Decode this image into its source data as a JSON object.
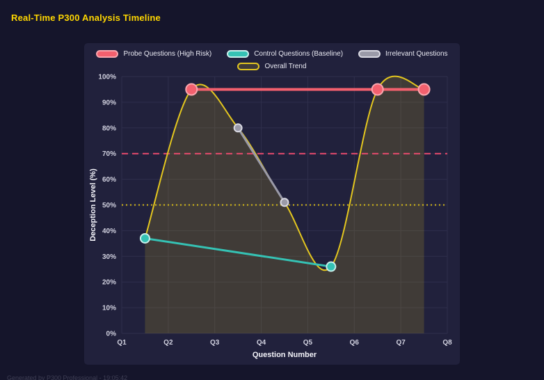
{
  "header": {
    "title": "Real-Time P300 Analysis Timeline",
    "title_color": "#ffd700"
  },
  "footer": {
    "note": "Generated by P300 Professional - 19:05:42"
  },
  "chart_data": {
    "type": "line",
    "title": "Real-Time P300 Analysis Timeline",
    "xlabel": "Question Number",
    "ylabel": "Deception Level (%)",
    "x_ticks": [
      "Q1",
      "Q2",
      "Q3",
      "Q4",
      "Q5",
      "Q6",
      "Q7",
      "Q8"
    ],
    "x_range": [
      1,
      8
    ],
    "ylim": [
      0,
      100
    ],
    "y_tick_step": 10,
    "y_tick_suffix": "%",
    "grid": true,
    "grid_color": "#2f2f4c",
    "tick_color": "#d2d2e0",
    "axis_label_color": "#f3f3f9",
    "legend_position": "top",
    "legend_rows": [
      [
        "probe",
        "control",
        "irrelevant"
      ],
      [
        "trend"
      ]
    ],
    "series": [
      {
        "key": "probe",
        "name": "Probe Questions (High Risk)",
        "color": "#f3606e",
        "border": "#f9a6ae",
        "x": [
          2.5,
          6.5,
          7.5
        ],
        "values": [
          95,
          95,
          95
        ],
        "line_width": 4,
        "point_radius": 8
      },
      {
        "key": "control",
        "name": "Control Questions (Baseline)",
        "color": "#35c2b4",
        "border": "#c9f0ec",
        "x": [
          1.5,
          5.5
        ],
        "values": [
          37,
          26
        ],
        "line_width": 3,
        "point_radius": 6.5
      },
      {
        "key": "irrelevant",
        "name": "Irrelevant Questions",
        "color": "#9a9aa8",
        "border": "#d9d9e2",
        "x": [
          3.5,
          4.5
        ],
        "values": [
          80,
          51
        ],
        "line_width": 3,
        "point_radius": 5.5
      }
    ],
    "trend": {
      "key": "trend",
      "name": "Overall Trend",
      "color": "#e4c71f",
      "fill": "rgba(228,199,31,0.16)",
      "x": [
        1.5,
        2.5,
        3.5,
        4.5,
        5.5,
        6.5,
        7.5
      ],
      "values": [
        37,
        95,
        80,
        51,
        26,
        95,
        95
      ],
      "line_width": 2
    },
    "reference_lines": [
      {
        "value": 70,
        "color": "#ec4b6e",
        "style": "dashed"
      },
      {
        "value": 50,
        "color": "#d8bc16",
        "style": "dotted"
      }
    ]
  }
}
